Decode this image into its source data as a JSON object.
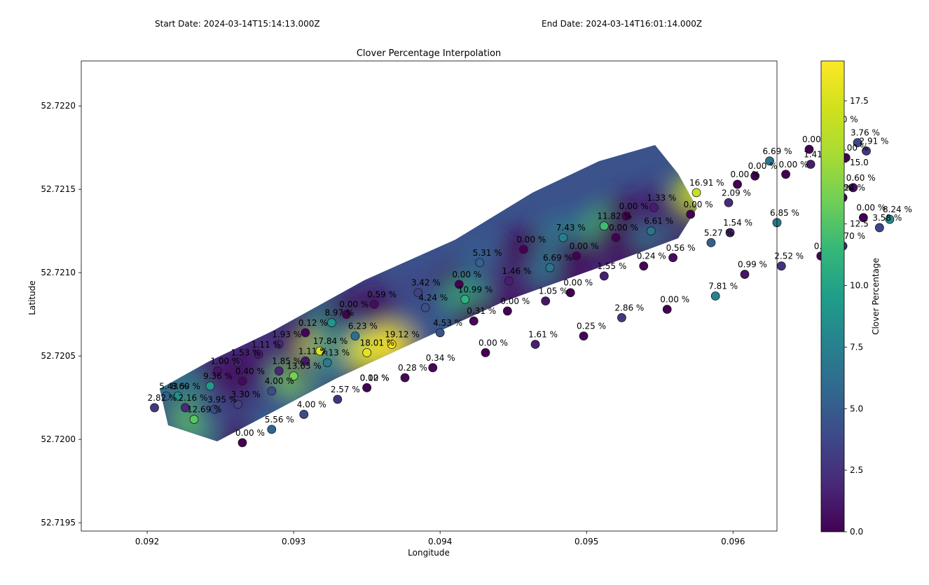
{
  "header": {
    "start_date": "Start Date: 2024-03-14T15:14:13.000Z",
    "end_date": "End Date: 2024-03-14T16:01:14.000Z"
  },
  "chart_data": {
    "type": "heatmap",
    "title": "Clover Percentage Interpolation",
    "xlabel": "Longitude",
    "ylabel": "Latitude",
    "colorbar_label": "Clover Percentage",
    "colormap": "viridis",
    "xlim": [
      0.09155,
      0.0963
    ],
    "ylim": [
      52.71945,
      52.72227
    ],
    "x_ticks": [
      0.092,
      0.093,
      0.094,
      0.095,
      0.096
    ],
    "x_tick_labels": [
      "0.092",
      "0.093",
      "0.094",
      "0.095",
      "0.096"
    ],
    "y_ticks": [
      52.7195,
      52.72,
      52.7205,
      52.721,
      52.7215,
      52.722
    ],
    "y_tick_labels": [
      "52.7195",
      "52.7200",
      "52.7205",
      "52.7210",
      "52.7215",
      "52.7220"
    ],
    "colorbar_range": [
      0,
      19.12
    ],
    "colorbar_ticks": [
      0,
      2.5,
      5,
      7.5,
      10,
      12.5,
      15,
      17.5
    ],
    "colorbar_tick_labels": [
      "0.0",
      "2.5",
      "5.0",
      "7.5",
      "10.0",
      "12.5",
      "15.0",
      "17.5"
    ],
    "grid": false,
    "points": [
      {
        "x": 0.09205,
        "y": 52.72019,
        "v": 2.82,
        "label": "2.82 %"
      },
      {
        "x": 0.09213,
        "y": 52.72026,
        "v": 5.43,
        "label": "5.43 %"
      },
      {
        "x": 0.09221,
        "y": 52.72026,
        "v": 8.6,
        "label": "8.60 %"
      },
      {
        "x": 0.09226,
        "y": 52.72019,
        "v": 2.16,
        "label": "2.16 %"
      },
      {
        "x": 0.09232,
        "y": 52.72012,
        "v": 12.69,
        "label": "12.69 %"
      },
      {
        "x": 0.09243,
        "y": 52.72032,
        "v": 9.36,
        "label": "9.36 %"
      },
      {
        "x": 0.09246,
        "y": 52.72018,
        "v": 3.95,
        "label": "3.95 %"
      },
      {
        "x": 0.09248,
        "y": 52.72041,
        "v": 1.0,
        "label": "1.00 %"
      },
      {
        "x": 0.09262,
        "y": 52.72046,
        "v": 1.53,
        "label": "1.53 %"
      },
      {
        "x": 0.09262,
        "y": 52.72021,
        "v": 3.3,
        "label": "3.30 %"
      },
      {
        "x": 0.09265,
        "y": 52.72035,
        "v": 0.4,
        "label": "0.40 %"
      },
      {
        "x": 0.09265,
        "y": 52.71998,
        "v": 0.0,
        "label": "0.00 %"
      },
      {
        "x": 0.09276,
        "y": 52.72051,
        "v": 1.11,
        "label": "1.11 %"
      },
      {
        "x": 0.09285,
        "y": 52.72006,
        "v": 5.56,
        "label": "5.56 %"
      },
      {
        "x": 0.09285,
        "y": 52.72029,
        "v": 4.0,
        "label": "4.00 %"
      },
      {
        "x": 0.0929,
        "y": 52.72041,
        "v": 1.85,
        "label": "1.85 %"
      },
      {
        "x": 0.0929,
        "y": 52.72057,
        "v": 1.93,
        "label": "1.93 %"
      },
      {
        "x": 0.093,
        "y": 52.72038,
        "v": 13.63,
        "label": "13.63 %"
      },
      {
        "x": 0.09307,
        "y": 52.72015,
        "v": 4.0,
        "label": "4.00 %"
      },
      {
        "x": 0.09308,
        "y": 52.72064,
        "v": 0.12,
        "label": "0.12 %"
      },
      {
        "x": 0.09308,
        "y": 52.72047,
        "v": 1.11,
        "label": "1.11 %"
      },
      {
        "x": 0.09318,
        "y": 52.72053,
        "v": 17.84,
        "label": "17.84 %"
      },
      {
        "x": 0.09323,
        "y": 52.72046,
        "v": 7.13,
        "label": "7.13 %"
      },
      {
        "x": 0.09326,
        "y": 52.7207,
        "v": 8.97,
        "label": "8.97 %"
      },
      {
        "x": 0.0933,
        "y": 52.72024,
        "v": 2.57,
        "label": "2.57 %"
      },
      {
        "x": 0.09336,
        "y": 52.72075,
        "v": 0.0,
        "label": "0.00 %"
      },
      {
        "x": 0.09342,
        "y": 52.72062,
        "v": 6.23,
        "label": "6.23 %"
      },
      {
        "x": 0.0935,
        "y": 52.72052,
        "v": 18.01,
        "label": "18.01 %"
      },
      {
        "x": 0.0935,
        "y": 52.72031,
        "v": 0.0,
        "label": "0.00 %"
      },
      {
        "x": 0.0935,
        "y": 52.72031,
        "v": 0.12,
        "label": "0.12 %"
      },
      {
        "x": 0.09355,
        "y": 52.72081,
        "v": 0.59,
        "label": "0.59 %"
      },
      {
        "x": 0.09367,
        "y": 52.72057,
        "v": 19.12,
        "label": "19.12 %"
      },
      {
        "x": 0.09376,
        "y": 52.72037,
        "v": 0.28,
        "label": "0.28 %"
      },
      {
        "x": 0.09385,
        "y": 52.72088,
        "v": 3.42,
        "label": "3.42 %"
      },
      {
        "x": 0.0939,
        "y": 52.72079,
        "v": 4.24,
        "label": "4.24 %"
      },
      {
        "x": 0.09395,
        "y": 52.72043,
        "v": 0.34,
        "label": "0.34 %"
      },
      {
        "x": 0.094,
        "y": 52.72064,
        "v": 4.53,
        "label": "4.53 %"
      },
      {
        "x": 0.09413,
        "y": 52.72093,
        "v": 0.0,
        "label": "0.00 %"
      },
      {
        "x": 0.09417,
        "y": 52.72084,
        "v": 10.99,
        "label": "10.99 %"
      },
      {
        "x": 0.09423,
        "y": 52.72071,
        "v": 0.31,
        "label": "0.31 %"
      },
      {
        "x": 0.09427,
        "y": 52.72106,
        "v": 5.31,
        "label": "5.31 %"
      },
      {
        "x": 0.09431,
        "y": 52.72052,
        "v": 0.0,
        "label": "0.00 %"
      },
      {
        "x": 0.09446,
        "y": 52.72077,
        "v": 0.0,
        "label": "0.00 %"
      },
      {
        "x": 0.09447,
        "y": 52.72095,
        "v": 1.46,
        "label": "1.46 %"
      },
      {
        "x": 0.09457,
        "y": 52.72114,
        "v": 0.0,
        "label": "0.00 %"
      },
      {
        "x": 0.09465,
        "y": 52.72057,
        "v": 1.61,
        "label": "1.61 %"
      },
      {
        "x": 0.09472,
        "y": 52.72083,
        "v": 1.05,
        "label": "1.05 %"
      },
      {
        "x": 0.09475,
        "y": 52.72103,
        "v": 6.69,
        "label": "6.69 %"
      },
      {
        "x": 0.09484,
        "y": 52.72121,
        "v": 7.43,
        "label": "7.43 %"
      },
      {
        "x": 0.09489,
        "y": 52.72088,
        "v": 0.0,
        "label": "0.00 %"
      },
      {
        "x": 0.09493,
        "y": 52.7211,
        "v": 0.0,
        "label": "0.00 %"
      },
      {
        "x": 0.09498,
        "y": 52.72062,
        "v": 0.25,
        "label": "0.25 %"
      },
      {
        "x": 0.09512,
        "y": 52.72128,
        "v": 11.82,
        "label": "11.82 %"
      },
      {
        "x": 0.09512,
        "y": 52.72098,
        "v": 1.55,
        "label": "1.55 %"
      },
      {
        "x": 0.0952,
        "y": 52.72121,
        "v": 0.0,
        "label": "0.00 %"
      },
      {
        "x": 0.09524,
        "y": 52.72073,
        "v": 2.86,
        "label": "2.86 %"
      },
      {
        "x": 0.09527,
        "y": 52.72134,
        "v": 0.0,
        "label": "0.00 %"
      },
      {
        "x": 0.09539,
        "y": 52.72104,
        "v": 0.24,
        "label": "0.24 %"
      },
      {
        "x": 0.09544,
        "y": 52.72125,
        "v": 6.61,
        "label": "6.61 %"
      },
      {
        "x": 0.09546,
        "y": 52.72139,
        "v": 1.33,
        "label": "1.33 %"
      },
      {
        "x": 0.09555,
        "y": 52.72078,
        "v": 0.0,
        "label": "0.00 %"
      },
      {
        "x": 0.09559,
        "y": 52.72109,
        "v": 0.56,
        "label": "0.56 %"
      },
      {
        "x": 0.09571,
        "y": 52.72135,
        "v": 0.0,
        "label": "0.00 %"
      },
      {
        "x": 0.09575,
        "y": 52.72148,
        "v": 16.91,
        "label": "16.91 %"
      },
      {
        "x": 0.09585,
        "y": 52.72118,
        "v": 5.27,
        "label": "5.27 %"
      },
      {
        "x": 0.09588,
        "y": 52.72086,
        "v": 7.81,
        "label": "7.81 %"
      },
      {
        "x": 0.09597,
        "y": 52.72142,
        "v": 2.09,
        "label": "2.09 %"
      },
      {
        "x": 0.09598,
        "y": 52.72124,
        "v": 1.54,
        "label": "1.54 %"
      },
      {
        "x": 0.09603,
        "y": 52.72153,
        "v": 0.0,
        "label": "0.00 %"
      },
      {
        "x": 0.09608,
        "y": 52.72099,
        "v": 0.99,
        "label": "0.99 %"
      },
      {
        "x": 0.09615,
        "y": 52.72158,
        "v": 0.0,
        "label": "0.00 %"
      },
      {
        "x": 0.09625,
        "y": 52.72167,
        "v": 6.69,
        "label": "6.69 %"
      },
      {
        "x": 0.0963,
        "y": 52.7213,
        "v": 6.85,
        "label": "6.85 %"
      },
      {
        "x": 0.09633,
        "y": 52.72104,
        "v": 2.52,
        "label": "2.52 %"
      },
      {
        "x": 0.09636,
        "y": 52.72159,
        "v": 0.0,
        "label": "0.00 %"
      },
      {
        "x": 0.09652,
        "y": 52.72174,
        "v": 0.0,
        "label": "0.00 %"
      },
      {
        "x": 0.09653,
        "y": 52.72165,
        "v": 1.41,
        "label": "1.41 %"
      },
      {
        "x": 0.0966,
        "y": 52.7211,
        "v": 0.19,
        "label": "0.19 %"
      },
      {
        "x": 0.09666,
        "y": 52.72145,
        "v": 0.0,
        "label": "0.00 %"
      },
      {
        "x": 0.0967,
        "y": 52.72186,
        "v": 0.0,
        "label": "0.00 %"
      },
      {
        "x": 0.09675,
        "y": 52.72145,
        "v": 0.24,
        "label": "0.24 %"
      },
      {
        "x": 0.09675,
        "y": 52.72116,
        "v": 1.7,
        "label": "1.70 %"
      },
      {
        "x": 0.09677,
        "y": 52.72169,
        "v": 0.0,
        "label": "0.00 %"
      },
      {
        "x": 0.09682,
        "y": 52.72151,
        "v": 0.6,
        "label": "0.60 %"
      },
      {
        "x": 0.09685,
        "y": 52.72178,
        "v": 3.76,
        "label": "3.76 %"
      },
      {
        "x": 0.09689,
        "y": 52.72133,
        "v": 0.0,
        "label": "0.00 %"
      },
      {
        "x": 0.09691,
        "y": 52.72173,
        "v": 2.91,
        "label": "2.91 %"
      },
      {
        "x": 0.097,
        "y": 52.72127,
        "v": 3.58,
        "label": "3.58 %"
      },
      {
        "x": 0.09707,
        "y": 52.72132,
        "v": 8.24,
        "label": "8.24 %"
      }
    ]
  }
}
